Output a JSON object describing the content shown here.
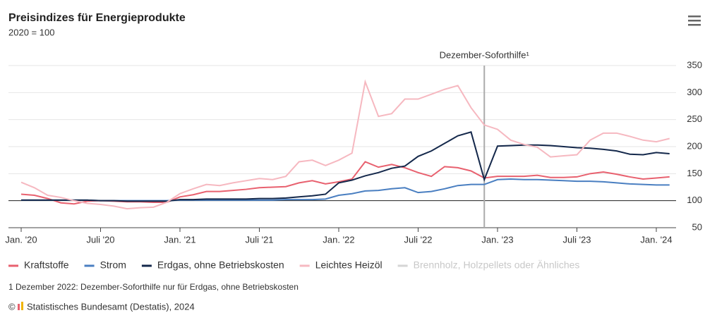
{
  "chart_data": {
    "type": "line",
    "title": "Preisindizes für Energieprodukte",
    "subtitle": "2020 = 100",
    "categories": [
      "Jan. '20",
      null,
      null,
      null,
      null,
      null,
      "Juli '20",
      null,
      null,
      null,
      null,
      null,
      "Jan. '21",
      null,
      null,
      null,
      null,
      null,
      "Juli '21",
      null,
      null,
      null,
      null,
      null,
      "Jan. '22",
      null,
      null,
      null,
      null,
      null,
      "Juli '22",
      null,
      null,
      null,
      null,
      null,
      "Jan. '23",
      null,
      null,
      null,
      null,
      null,
      "Juli '23",
      null,
      null,
      null,
      null,
      null,
      "Jan. '24",
      null
    ],
    "series": [
      {
        "name": "Kraftstoffe",
        "color": "#e8616f",
        "values": [
          112,
          110,
          104,
          96,
          94,
          99,
          100,
          99,
          98,
          98,
          97,
          97,
          107,
          111,
          117,
          117,
          119,
          121,
          124,
          125,
          126,
          133,
          137,
          131,
          135,
          140,
          172,
          162,
          167,
          161,
          152,
          145,
          163,
          161,
          155,
          142,
          145,
          145,
          145,
          147,
          143,
          143,
          144,
          150,
          153,
          149,
          144,
          140,
          142,
          144
        ]
      },
      {
        "name": "Strom",
        "color": "#4a7fc1",
        "values": [
          101,
          101,
          101,
          101,
          101,
          101,
          100,
          100,
          100,
          100,
          100,
          100,
          101,
          101,
          101,
          101,
          101,
          101,
          101,
          101,
          102,
          102,
          102,
          103,
          110,
          113,
          118,
          119,
          122,
          124,
          115,
          117,
          122,
          128,
          130,
          130,
          139,
          140,
          139,
          139,
          138,
          137,
          136,
          136,
          135,
          133,
          131,
          130,
          129,
          129
        ]
      },
      {
        "name": "Erdgas, ohne Betriebskosten",
        "color": "#14284b",
        "values": [
          101,
          101,
          101,
          101,
          101,
          101,
          100,
          100,
          99,
          99,
          99,
          99,
          102,
          102,
          103,
          103,
          103,
          103,
          104,
          104,
          105,
          107,
          109,
          112,
          133,
          138,
          146,
          152,
          160,
          164,
          182,
          192,
          206,
          220,
          227,
          139,
          201,
          202,
          203,
          203,
          202,
          200,
          198,
          197,
          195,
          192,
          186,
          185,
          189,
          187
        ]
      },
      {
        "name": "Leichtes Heizöl",
        "color": "#f6b8c0",
        "values": [
          134,
          124,
          110,
          106,
          100,
          95,
          93,
          90,
          85,
          87,
          88,
          97,
          113,
          122,
          130,
          128,
          133,
          137,
          141,
          139,
          145,
          172,
          175,
          165,
          175,
          188,
          320,
          256,
          261,
          288,
          288,
          297,
          306,
          313,
          272,
          240,
          232,
          212,
          204,
          199,
          181,
          183,
          185,
          212,
          225,
          225,
          219,
          212,
          209,
          215
        ]
      }
    ],
    "inactive_legend": [
      {
        "name": "Brennholz, Holzpellets oder Ähnliches",
        "color": "#d5d5d5"
      }
    ],
    "annotation": {
      "label": "Dezember-Soforthilfe¹",
      "index": 35
    },
    "reference_line": 100,
    "ylim": [
      50,
      350
    ],
    "yticks": [
      50,
      100,
      150,
      200,
      250,
      300,
      350
    ],
    "grid": true,
    "footnote": "1 Dezember 2022: Dezember-Soforthilfe nur für Erdgas, ohne Betriebskosten",
    "source": "Statistisches Bundesamt (Destatis), 2024"
  }
}
